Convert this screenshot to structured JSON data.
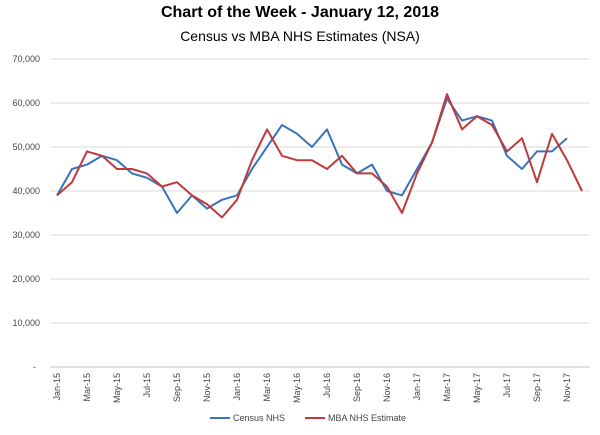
{
  "chart_data": {
    "type": "line",
    "title": "Chart of the Week - January 12, 2018",
    "subtitle": "Census vs MBA NHS Estimates (NSA)",
    "xlabel": "",
    "ylabel": "",
    "ylim": [
      0,
      70000
    ],
    "yticks": [
      "-",
      "10,000",
      "20,000",
      "30,000",
      "40,000",
      "50,000",
      "60,000",
      "70,000"
    ],
    "x": [
      "Jan-15",
      "Feb-15",
      "Mar-15",
      "Apr-15",
      "May-15",
      "Jun-15",
      "Jul-15",
      "Aug-15",
      "Sep-15",
      "Oct-15",
      "Nov-15",
      "Dec-15",
      "Jan-16",
      "Feb-16",
      "Mar-16",
      "Apr-16",
      "May-16",
      "Jun-16",
      "Jul-16",
      "Aug-16",
      "Sep-16",
      "Oct-16",
      "Nov-16",
      "Dec-16",
      "Jan-17",
      "Feb-17",
      "Mar-17",
      "Apr-17",
      "May-17",
      "Jun-17",
      "Jul-17",
      "Aug-17",
      "Sep-17",
      "Oct-17",
      "Nov-17",
      "Dec-17"
    ],
    "xtick_labels": [
      "Jan-15",
      "Mar-15",
      "May-15",
      "Jul-15",
      "Sep-15",
      "Nov-15",
      "Jan-16",
      "Mar-16",
      "May-16",
      "Jul-16",
      "Sep-16",
      "Nov-16",
      "Jan-17",
      "Mar-17",
      "May-17",
      "Jul-17",
      "Sep-17",
      "Nov-17"
    ],
    "grid": true,
    "legend_position": "bottom",
    "series": [
      {
        "name": "Census NHS",
        "color": "#3a74b8",
        "values": [
          39000,
          45000,
          46000,
          48000,
          47000,
          44000,
          43000,
          41000,
          35000,
          39000,
          36000,
          38000,
          39000,
          45000,
          50000,
          55000,
          53000,
          50000,
          54000,
          46000,
          44000,
          46000,
          40000,
          39000,
          45000,
          51000,
          61000,
          56000,
          57000,
          56000,
          48000,
          45000,
          49000,
          49000,
          52000,
          null
        ]
      },
      {
        "name": "MBA NHS Estimate",
        "color": "#c0393b",
        "values": [
          39000,
          42000,
          49000,
          48000,
          45000,
          45000,
          44000,
          41000,
          42000,
          39000,
          37000,
          34000,
          38000,
          47000,
          54000,
          48000,
          47000,
          47000,
          45000,
          48000,
          44000,
          44000,
          41000,
          35000,
          44000,
          51000,
          62000,
          54000,
          57000,
          55000,
          49000,
          52000,
          42000,
          53000,
          47000,
          40000
        ]
      }
    ]
  }
}
